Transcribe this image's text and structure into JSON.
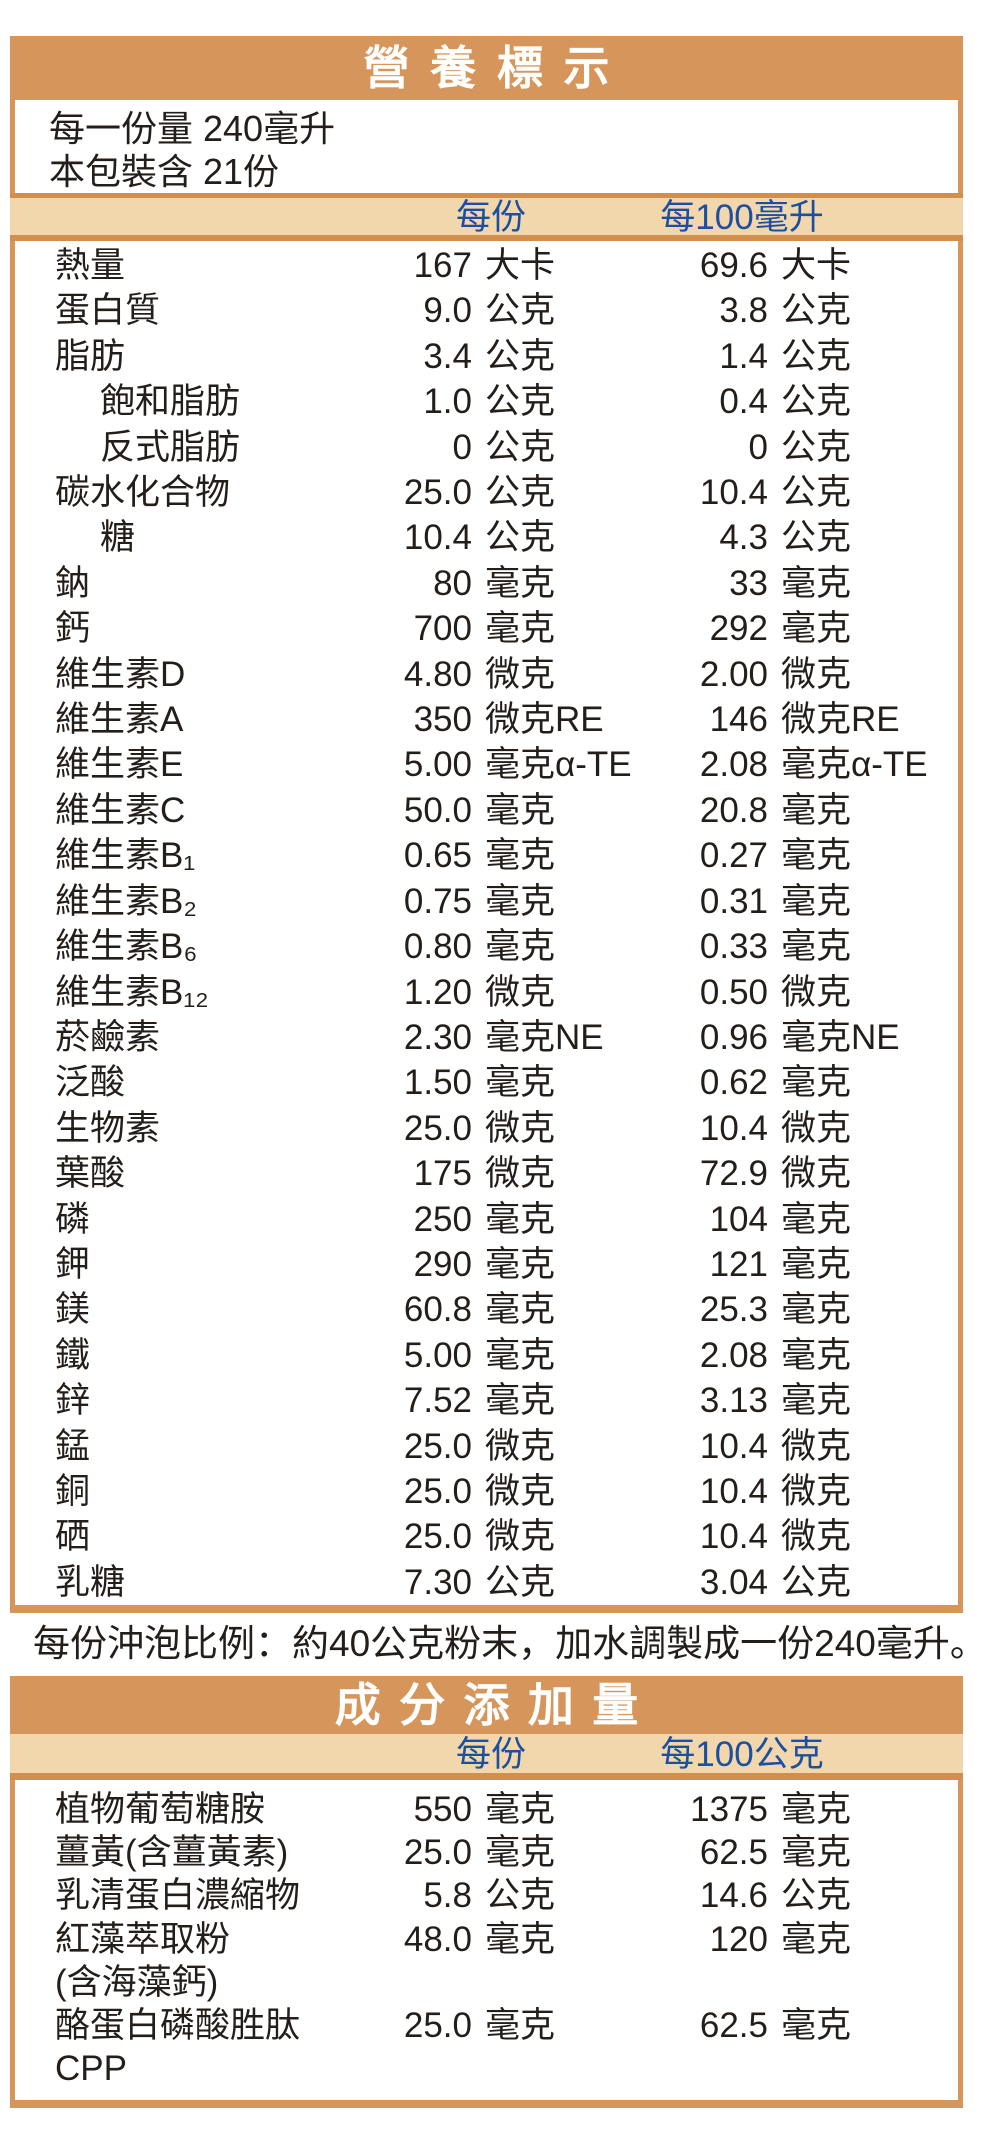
{
  "colors": {
    "orange_bar": "#D6955A",
    "orange_line": "#D08E4F",
    "tan_band": "#F3D7AC",
    "header_blue": "#1B4F9F",
    "text_ink": "#241E1A"
  },
  "nutrition_table": {
    "title": "營養標示",
    "serving_size_line": "每一份量 240毫升",
    "servings_line": "本包裝含 21份",
    "col_headers": [
      "每份",
      "每100毫升"
    ],
    "rows": [
      {
        "name": "熱量",
        "indent": false,
        "v1": "167",
        "u1": "大卡",
        "v2": "69.6",
        "u2": "大卡"
      },
      {
        "name": "蛋白質",
        "indent": false,
        "v1": "9.0",
        "u1": "公克",
        "v2": "3.8",
        "u2": "公克"
      },
      {
        "name": "脂肪",
        "indent": false,
        "v1": "3.4",
        "u1": "公克",
        "v2": "1.4",
        "u2": "公克"
      },
      {
        "name": "飽和脂肪",
        "indent": true,
        "v1": "1.0",
        "u1": "公克",
        "v2": "0.4",
        "u2": "公克"
      },
      {
        "name": "反式脂肪",
        "indent": true,
        "v1": "0",
        "u1": "公克",
        "v2": "0",
        "u2": "公克"
      },
      {
        "name": "碳水化合物",
        "indent": false,
        "v1": "25.0",
        "u1": "公克",
        "v2": "10.4",
        "u2": "公克"
      },
      {
        "name": "糖",
        "indent": true,
        "v1": "10.4",
        "u1": "公克",
        "v2": "4.3",
        "u2": "公克"
      },
      {
        "name": "鈉",
        "indent": false,
        "v1": "80",
        "u1": "毫克",
        "v2": "33",
        "u2": "毫克"
      },
      {
        "name": "鈣",
        "indent": false,
        "v1": "700",
        "u1": "毫克",
        "v2": "292",
        "u2": "毫克"
      },
      {
        "name": "維生素D",
        "indent": false,
        "v1": "4.80",
        "u1": "微克",
        "v2": "2.00",
        "u2": "微克"
      },
      {
        "name": "維生素A",
        "indent": false,
        "v1": "350",
        "u1": "微克RE",
        "v2": "146",
        "u2": "微克RE"
      },
      {
        "name": "維生素E",
        "indent": false,
        "v1": "5.00",
        "u1": "毫克α-TE",
        "v2": "2.08",
        "u2": "毫克α-TE"
      },
      {
        "name": "維生素C",
        "indent": false,
        "v1": "50.0",
        "u1": "毫克",
        "v2": "20.8",
        "u2": "毫克"
      },
      {
        "name": "維生素B₁",
        "indent": false,
        "v1": "0.65",
        "u1": "毫克",
        "v2": "0.27",
        "u2": "毫克"
      },
      {
        "name": "維生素B₂",
        "indent": false,
        "v1": "0.75",
        "u1": "毫克",
        "v2": "0.31",
        "u2": "毫克"
      },
      {
        "name": "維生素B₆",
        "indent": false,
        "v1": "0.80",
        "u1": "毫克",
        "v2": "0.33",
        "u2": "毫克"
      },
      {
        "name": "維生素B₁₂",
        "indent": false,
        "v1": "1.20",
        "u1": "微克",
        "v2": "0.50",
        "u2": "微克"
      },
      {
        "name": "菸鹼素",
        "indent": false,
        "v1": "2.30",
        "u1": "毫克NE",
        "v2": "0.96",
        "u2": "毫克NE"
      },
      {
        "name": "泛酸",
        "indent": false,
        "v1": "1.50",
        "u1": "毫克",
        "v2": "0.62",
        "u2": "毫克"
      },
      {
        "name": "生物素",
        "indent": false,
        "v1": "25.0",
        "u1": "微克",
        "v2": "10.4",
        "u2": "微克"
      },
      {
        "name": "葉酸",
        "indent": false,
        "v1": "175",
        "u1": "微克",
        "v2": "72.9",
        "u2": "微克"
      },
      {
        "name": "磷",
        "indent": false,
        "v1": "250",
        "u1": "毫克",
        "v2": "104",
        "u2": "毫克"
      },
      {
        "name": "鉀",
        "indent": false,
        "v1": "290",
        "u1": "毫克",
        "v2": "121",
        "u2": "毫克"
      },
      {
        "name": "鎂",
        "indent": false,
        "v1": "60.8",
        "u1": "毫克",
        "v2": "25.3",
        "u2": "毫克"
      },
      {
        "name": "鐵",
        "indent": false,
        "v1": "5.00",
        "u1": "毫克",
        "v2": "2.08",
        "u2": "毫克"
      },
      {
        "name": "鋅",
        "indent": false,
        "v1": "7.52",
        "u1": "毫克",
        "v2": "3.13",
        "u2": "毫克"
      },
      {
        "name": "錳",
        "indent": false,
        "v1": "25.0",
        "u1": "微克",
        "v2": "10.4",
        "u2": "微克"
      },
      {
        "name": "銅",
        "indent": false,
        "v1": "25.0",
        "u1": "微克",
        "v2": "10.4",
        "u2": "微克"
      },
      {
        "name": "硒",
        "indent": false,
        "v1": "25.0",
        "u1": "微克",
        "v2": "10.4",
        "u2": "微克"
      },
      {
        "name": "乳糖",
        "indent": false,
        "v1": "7.30",
        "u1": "公克",
        "v2": "3.04",
        "u2": "公克"
      }
    ]
  },
  "note": "每份沖泡比例：約40公克粉末，加水調製成一份240毫升。",
  "additives_table": {
    "title": "成分添加量",
    "col_headers": [
      "每份",
      "每100公克"
    ],
    "rows": [
      {
        "name": "植物葡萄糖胺",
        "indent": false,
        "v1": "550",
        "u1": "毫克",
        "v2": "1375",
        "u2": "毫克"
      },
      {
        "name": "薑黃(含薑黃素)",
        "indent": false,
        "v1": "25.0",
        "u1": "毫克",
        "v2": "62.5",
        "u2": "毫克"
      },
      {
        "name": "乳清蛋白濃縮物",
        "indent": false,
        "v1": "5.8",
        "u1": "公克",
        "v2": "14.6",
        "u2": "公克"
      },
      {
        "name": "紅藻萃取粉",
        "indent": false,
        "v1": "48.0",
        "u1": "毫克",
        "v2": "120",
        "u2": "毫克"
      },
      {
        "name": "(含海藻鈣)",
        "indent": false,
        "v1": "",
        "u1": "",
        "v2": "",
        "u2": ""
      },
      {
        "name": "酪蛋白磷酸胜肽",
        "indent": false,
        "v1": "25.0",
        "u1": "毫克",
        "v2": "62.5",
        "u2": "毫克"
      },
      {
        "name": "CPP",
        "indent": false,
        "v1": "",
        "u1": "",
        "v2": "",
        "u2": ""
      }
    ]
  }
}
